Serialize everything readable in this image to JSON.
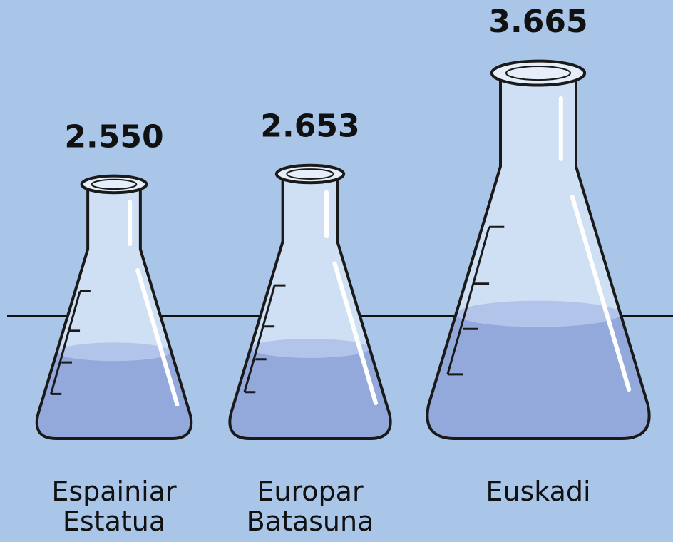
{
  "chart_data": {
    "type": "pictograph",
    "categories": [
      "Espainiar Estatua",
      "Europar Batasuna",
      "Euskadi"
    ],
    "values": [
      2550,
      2653,
      3665
    ],
    "value_labels": [
      "2.550",
      "2.653",
      "3.665"
    ],
    "color": "#93a9dc"
  }
}
